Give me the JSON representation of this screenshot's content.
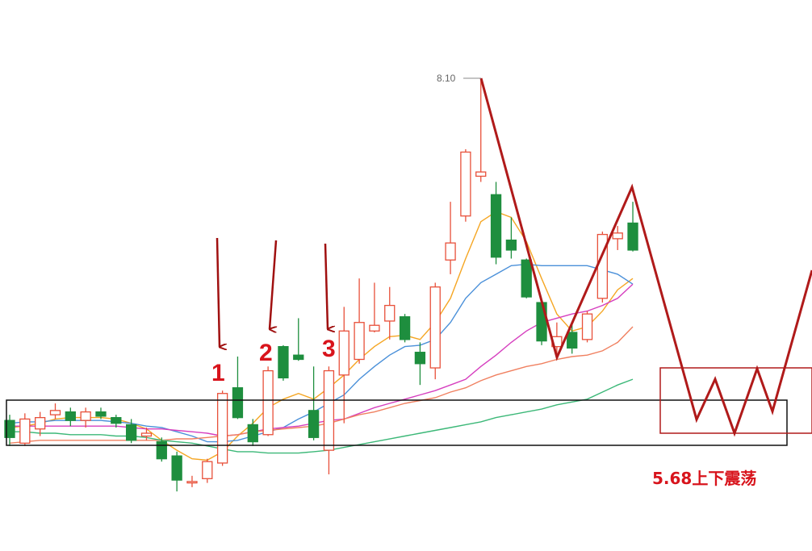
{
  "chart_data": {
    "type": "candlestick",
    "ylim": [
      4.8,
      8.2
    ],
    "up_color": "#e8503a",
    "down_color": "#1e8e3e",
    "open": [
      5.69,
      5.53,
      5.63,
      5.73,
      5.75,
      5.69,
      5.75,
      5.71,
      5.66,
      5.58,
      5.54,
      5.44,
      5.25,
      5.28,
      5.39,
      5.92,
      5.66,
      5.59,
      6.21,
      6.15,
      5.76,
      5.48,
      6.01,
      6.12,
      6.32,
      6.39,
      6.42,
      6.17,
      6.06,
      6.82,
      7.13,
      7.41,
      7.28,
      6.96,
      6.82,
      6.52,
      6.21,
      6.31,
      6.26,
      6.55,
      6.97,
      7.08
    ],
    "high": [
      5.73,
      5.74,
      5.75,
      5.81,
      5.78,
      5.78,
      5.78,
      5.73,
      5.7,
      5.64,
      5.57,
      5.47,
      5.3,
      5.42,
      5.9,
      6.14,
      5.7,
      6.07,
      6.22,
      6.41,
      6.07,
      6.07,
      6.49,
      6.69,
      6.66,
      6.63,
      6.44,
      6.24,
      6.66,
      7.23,
      7.6,
      8.1,
      7.37,
      7.12,
      6.83,
      6.54,
      6.38,
      6.38,
      6.46,
      7.02,
      7.06,
      7.23
    ],
    "low": [
      5.51,
      5.51,
      5.58,
      5.7,
      5.65,
      5.64,
      5.7,
      5.64,
      5.53,
      5.55,
      5.4,
      5.19,
      5.22,
      5.25,
      5.37,
      5.7,
      5.51,
      5.58,
      5.97,
      6.11,
      5.55,
      5.31,
      5.67,
      6.09,
      6.31,
      6.26,
      6.24,
      5.94,
      5.98,
      6.72,
      7.09,
      7.37,
      6.79,
      6.83,
      6.55,
      6.22,
      6.15,
      6.16,
      6.24,
      6.52,
      6.89,
      6.88
    ],
    "close": [
      5.57,
      5.7,
      5.71,
      5.76,
      5.69,
      5.75,
      5.72,
      5.67,
      5.55,
      5.6,
      5.42,
      5.27,
      5.26,
      5.4,
      5.88,
      5.71,
      5.54,
      6.04,
      5.99,
      6.12,
      5.57,
      6.04,
      6.32,
      6.38,
      6.36,
      6.5,
      6.26,
      6.09,
      6.63,
      6.94,
      7.58,
      7.44,
      6.84,
      6.89,
      6.56,
      6.25,
      6.28,
      6.2,
      6.44,
      7.0,
      7.01,
      6.89
    ],
    "lines": [
      {
        "color": "#f5a623",
        "values": [
          5.64,
          5.65,
          5.67,
          5.7,
          5.71,
          5.71,
          5.71,
          5.7,
          5.67,
          5.63,
          5.55,
          5.48,
          5.42,
          5.41,
          5.47,
          5.58,
          5.67,
          5.78,
          5.84,
          5.88,
          5.84,
          5.92,
          6.01,
          6.12,
          6.21,
          6.28,
          6.29,
          6.26,
          6.38,
          6.55,
          6.83,
          7.09,
          7.16,
          7.12,
          6.95,
          6.69,
          6.44,
          6.32,
          6.35,
          6.46,
          6.61,
          6.69
        ]
      },
      {
        "color": "#4a90d9",
        "values": [
          5.67,
          5.68,
          5.68,
          5.69,
          5.69,
          5.69,
          5.69,
          5.68,
          5.67,
          5.65,
          5.64,
          5.61,
          5.58,
          5.54,
          5.54,
          5.55,
          5.58,
          5.61,
          5.64,
          5.7,
          5.75,
          5.81,
          5.87,
          5.98,
          6.07,
          6.15,
          6.21,
          6.22,
          6.26,
          6.38,
          6.55,
          6.66,
          6.72,
          6.78,
          6.79,
          6.78,
          6.78,
          6.78,
          6.78,
          6.75,
          6.72,
          6.65
        ]
      },
      {
        "color": "#d63fbf",
        "values": [
          5.65,
          5.65,
          5.65,
          5.65,
          5.65,
          5.65,
          5.65,
          5.65,
          5.64,
          5.63,
          5.63,
          5.62,
          5.61,
          5.6,
          5.58,
          5.59,
          5.61,
          5.63,
          5.64,
          5.65,
          5.67,
          5.69,
          5.7,
          5.74,
          5.78,
          5.81,
          5.84,
          5.87,
          5.9,
          5.94,
          5.98,
          6.07,
          6.15,
          6.24,
          6.32,
          6.38,
          6.41,
          6.44,
          6.46,
          6.5,
          6.55,
          6.65
        ]
      },
      {
        "color": "#f08060",
        "values": [
          5.53,
          5.54,
          5.55,
          5.55,
          5.55,
          5.55,
          5.55,
          5.55,
          5.55,
          5.55,
          5.55,
          5.56,
          5.56,
          5.57,
          5.58,
          5.59,
          5.61,
          5.62,
          5.63,
          5.64,
          5.65,
          5.67,
          5.7,
          5.73,
          5.75,
          5.78,
          5.81,
          5.83,
          5.85,
          5.89,
          5.92,
          5.97,
          6.01,
          6.04,
          6.07,
          6.09,
          6.12,
          6.14,
          6.15,
          6.18,
          6.24,
          6.35
        ]
      },
      {
        "color": "#3cb878",
        "values": [
          5.61,
          5.61,
          5.6,
          5.6,
          5.59,
          5.59,
          5.59,
          5.58,
          5.58,
          5.57,
          5.55,
          5.54,
          5.53,
          5.51,
          5.49,
          5.47,
          5.47,
          5.46,
          5.46,
          5.46,
          5.47,
          5.48,
          5.5,
          5.52,
          5.54,
          5.56,
          5.58,
          5.6,
          5.62,
          5.64,
          5.66,
          5.68,
          5.71,
          5.73,
          5.75,
          5.77,
          5.8,
          5.82,
          5.84,
          5.89,
          5.94,
          5.98
        ]
      }
    ],
    "high_label": "8.10",
    "annotations": [
      "1",
      "2",
      "3"
    ],
    "note": "5.68上下震荡"
  }
}
